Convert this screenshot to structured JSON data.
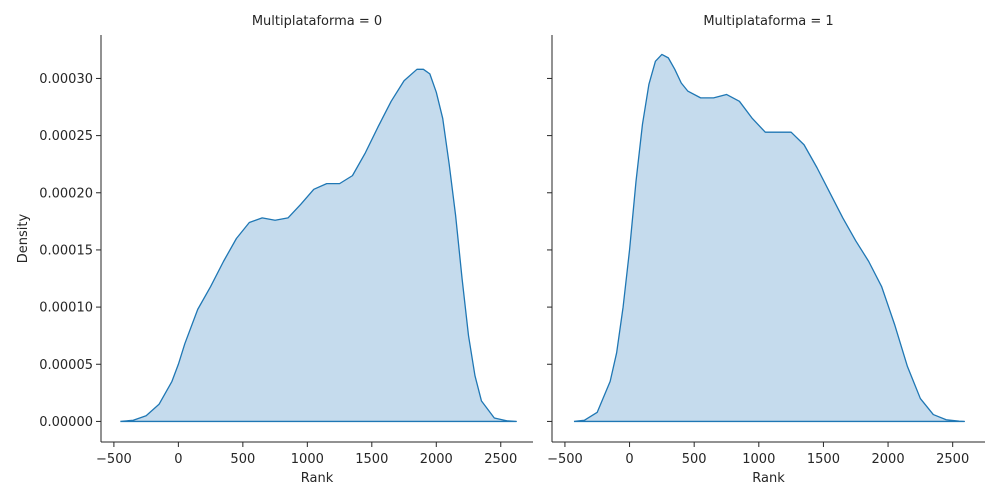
{
  "chart_data": [
    {
      "type": "area",
      "title": "Multiplataforma = 0",
      "xlabel": "Rank",
      "ylabel": "Density",
      "xlim": [
        -600,
        2750
      ],
      "ylim": [
        -1.8e-05,
        0.000338
      ],
      "xticks": [
        -500,
        0,
        500,
        1000,
        1500,
        2000,
        2500
      ],
      "xtick_labels": [
        "−500",
        "0",
        "500",
        "1000",
        "1500",
        "2000",
        "2500"
      ],
      "yticks": [
        0,
        5e-05,
        0.0001,
        0.00015,
        0.0002,
        0.00025,
        0.0003
      ],
      "ytick_labels": [
        "0.00000",
        "0.00005",
        "0.00010",
        "0.00015",
        "0.00020",
        "0.00025",
        "0.00030"
      ],
      "grid": false,
      "color": "#1f77b4",
      "fill_color": "#c5dbed",
      "series": [
        {
          "x": [
            -450,
            -350,
            -250,
            -150,
            -50,
            0,
            50,
            150,
            250,
            350,
            450,
            550,
            650,
            750,
            850,
            950,
            1050,
            1150,
            1250,
            1350,
            1450,
            1550,
            1650,
            1750,
            1850,
            1900,
            1950,
            2000,
            2050,
            2100,
            2150,
            2200,
            2250,
            2300,
            2350,
            2450,
            2550,
            2620
          ],
          "y": [
            0.0,
            1e-06,
            5e-06,
            1.5e-05,
            3.5e-05,
            5e-05,
            6.8e-05,
            9.8e-05,
            0.000118,
            0.00014,
            0.00016,
            0.000174,
            0.000178,
            0.000176,
            0.000178,
            0.00019,
            0.000203,
            0.000208,
            0.000208,
            0.000215,
            0.000235,
            0.000258,
            0.00028,
            0.000298,
            0.000308,
            0.000308,
            0.000304,
            0.000288,
            0.000265,
            0.000225,
            0.00018,
            0.000125,
            7.5e-05,
            4e-05,
            1.8e-05,
            3e-06,
            5e-07,
            0.0
          ]
        }
      ]
    },
    {
      "type": "area",
      "title": "Multiplataforma = 1",
      "xlabel": "Rank",
      "ylabel": "",
      "xlim": [
        -600,
        2750
      ],
      "ylim": [
        -1.8e-05,
        0.000338
      ],
      "xticks": [
        -500,
        0,
        500,
        1000,
        1500,
        2000,
        2500
      ],
      "xtick_labels": [
        "−500",
        "0",
        "500",
        "1000",
        "1500",
        "2000",
        "2500"
      ],
      "yticks": [
        0,
        5e-05,
        0.0001,
        0.00015,
        0.0002,
        0.00025,
        0.0003
      ],
      "ytick_labels": [],
      "grid": false,
      "color": "#1f77b4",
      "fill_color": "#c5dbed",
      "series": [
        {
          "x": [
            -430,
            -350,
            -250,
            -150,
            -100,
            -50,
            0,
            50,
            100,
            150,
            200,
            250,
            300,
            350,
            400,
            450,
            550,
            650,
            750,
            850,
            950,
            1050,
            1150,
            1250,
            1350,
            1450,
            1550,
            1650,
            1750,
            1850,
            1950,
            2050,
            2150,
            2250,
            2350,
            2450,
            2550,
            2590
          ],
          "y": [
            0.0,
            1e-06,
            8e-06,
            3.5e-05,
            6e-05,
            0.0001,
            0.00015,
            0.00021,
            0.00026,
            0.000295,
            0.000315,
            0.000321,
            0.000318,
            0.000308,
            0.000296,
            0.000289,
            0.000283,
            0.000283,
            0.000286,
            0.00028,
            0.000265,
            0.000253,
            0.000253,
            0.000253,
            0.000242,
            0.000222,
            0.0002,
            0.000178,
            0.000158,
            0.00014,
            0.000118,
            8.5e-05,
            4.8e-05,
            2e-05,
            6e-06,
            1.5e-06,
            2e-07,
            0.0
          ]
        }
      ]
    }
  ]
}
